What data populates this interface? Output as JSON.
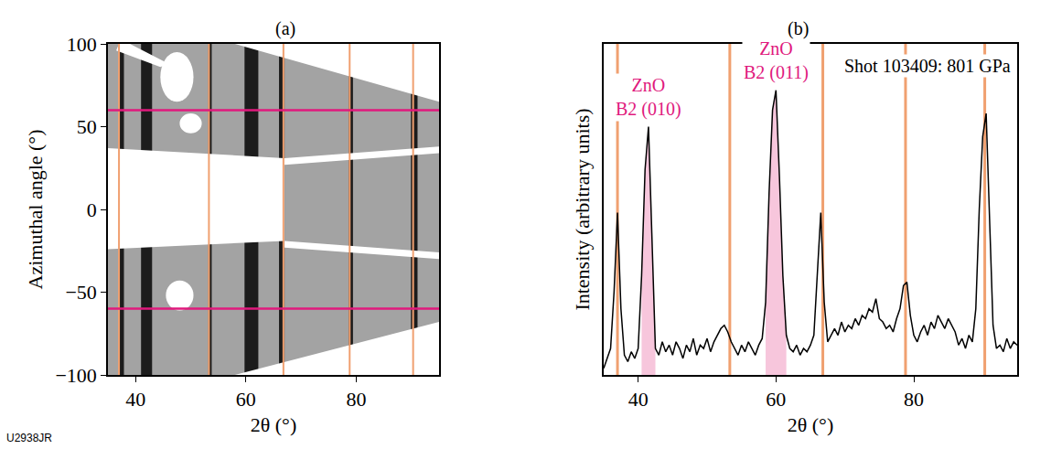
{
  "chart_data": [
    {
      "type": "image",
      "title": "(a)",
      "figure_label": "U2938JR",
      "x_label": "2θ (°)",
      "y_label": "Azimuthal angle (°)",
      "xlim": [
        35,
        95
      ],
      "ylim": [
        -100,
        100
      ],
      "xticks": [
        40,
        60,
        80
      ],
      "yticks": [
        -100,
        -50,
        0,
        50,
        100
      ],
      "reference_lines_x": [
        37,
        53.3,
        66.8,
        78.8,
        90.3
      ],
      "reference_lines_y": [
        -60,
        60
      ],
      "rings": [
        {
          "x": 37.5,
          "width": 0.8
        },
        {
          "x": 42,
          "width": 2
        },
        {
          "x": 53.5,
          "width": 0.6
        },
        {
          "x": 61,
          "width": 2.5
        },
        {
          "x": 66.5,
          "width": 1
        },
        {
          "x": 79,
          "width": 0.8
        },
        {
          "x": 90.5,
          "width": 1.2
        }
      ],
      "blank_regions": [
        {
          "x": [
            58,
            95,
            95
          ],
          "y": [
            100,
            100,
            65
          ]
        },
        {
          "x": [
            35,
            67,
            67,
            35
          ],
          "y": [
            37,
            31,
            -19,
            -24
          ]
        },
        {
          "x": [
            67,
            95,
            95,
            67
          ],
          "y": [
            27,
            34,
            38,
            31
          ]
        },
        {
          "x": [
            67,
            95,
            95,
            67
          ],
          "y": [
            -19,
            -26,
            -30,
            -23
          ]
        },
        {
          "x": [
            58,
            95,
            95
          ],
          "y": [
            -100,
            -68,
            -100
          ]
        },
        {
          "x": [
            37,
            39,
            46,
            44.5,
            36.5
          ],
          "y": [
            100,
            100,
            88,
            86,
            96
          ]
        }
      ],
      "blank_ellipses": [
        {
          "x": 47.5,
          "y": 80,
          "rx": 3,
          "ry": 15
        },
        {
          "x": 50,
          "y": 52,
          "rx": 2,
          "ry": 6
        },
        {
          "x": 48,
          "y": -52,
          "rx": 2.5,
          "ry": 9
        }
      ]
    },
    {
      "type": "line",
      "title": "(b)",
      "annotation": "Shot 103409: 801 GPa",
      "x_label": "2θ (°)",
      "y_label": "Intensity (arbitrary units)",
      "xlim": [
        35,
        95
      ],
      "ylim": [
        0,
        100
      ],
      "xticks": [
        40,
        60,
        80
      ],
      "yticks": [],
      "tick_labels": "x",
      "color": "#000000",
      "x": [
        35,
        35.5,
        36,
        36.5,
        37,
        37.5,
        38,
        38.5,
        39,
        39.5,
        40,
        40.5,
        41,
        41.5,
        42,
        42.5,
        43,
        43.5,
        44,
        44.5,
        45,
        45.5,
        46,
        46.5,
        47,
        47.5,
        48,
        48.5,
        49,
        49.5,
        50,
        50.5,
        51,
        51.5,
        52,
        52.5,
        53,
        53.5,
        54,
        54.5,
        55,
        55.5,
        56,
        56.5,
        57,
        57.5,
        58,
        58.5,
        59,
        59.5,
        60,
        60.5,
        61,
        61.5,
        62,
        62.5,
        63,
        63.5,
        64,
        64.5,
        65,
        65.5,
        66,
        66.5,
        67,
        67.5,
        68,
        68.5,
        69,
        69.5,
        70,
        70.5,
        71,
        71.5,
        72,
        72.5,
        73,
        73.5,
        74,
        74.5,
        75,
        75.5,
        76,
        76.5,
        77,
        77.5,
        78,
        78.5,
        79,
        79.5,
        80,
        80.5,
        81,
        81.5,
        82,
        82.5,
        83,
        83.5,
        84,
        84.5,
        85,
        85.5,
        86,
        86.5,
        87,
        87.5,
        88,
        88.5,
        89,
        89.5,
        90,
        90.5,
        91,
        91.5,
        92,
        92.5,
        93,
        93.5,
        94,
        94.5,
        95
      ],
      "values": [
        2,
        5,
        8,
        25,
        49,
        20,
        6,
        4,
        7,
        5,
        8,
        30,
        62,
        75,
        40,
        8,
        6,
        10,
        7,
        9,
        6,
        10,
        8,
        5,
        9,
        7,
        11,
        6,
        9,
        8,
        11,
        7,
        10,
        12,
        14,
        15,
        13,
        10,
        8,
        6,
        9,
        7,
        10,
        8,
        6,
        9,
        11,
        22,
        55,
        80,
        86,
        60,
        30,
        12,
        8,
        7,
        9,
        6,
        8,
        7,
        9,
        12,
        30,
        49,
        22,
        10,
        12,
        14,
        12,
        16,
        13,
        15,
        14,
        17,
        15,
        18,
        17,
        20,
        19,
        23,
        17,
        16,
        14,
        15,
        13,
        17,
        20,
        27,
        28,
        18,
        12,
        10,
        13,
        15,
        12,
        16,
        14,
        18,
        16,
        14,
        17,
        15,
        13,
        9,
        11,
        8,
        12,
        10,
        20,
        50,
        72,
        79,
        45,
        15,
        8,
        9,
        7,
        11,
        8,
        10,
        9
      ],
      "reference_lines_x": [
        37,
        53.3,
        66.8,
        78.8,
        90.3
      ],
      "peaks": [
        {
          "label": "ZnO B2 (010)",
          "xlim": [
            40.5,
            42.5
          ]
        },
        {
          "label": "ZnO B2 (011)",
          "xlim": [
            58.5,
            61.5
          ]
        }
      ]
    }
  ]
}
